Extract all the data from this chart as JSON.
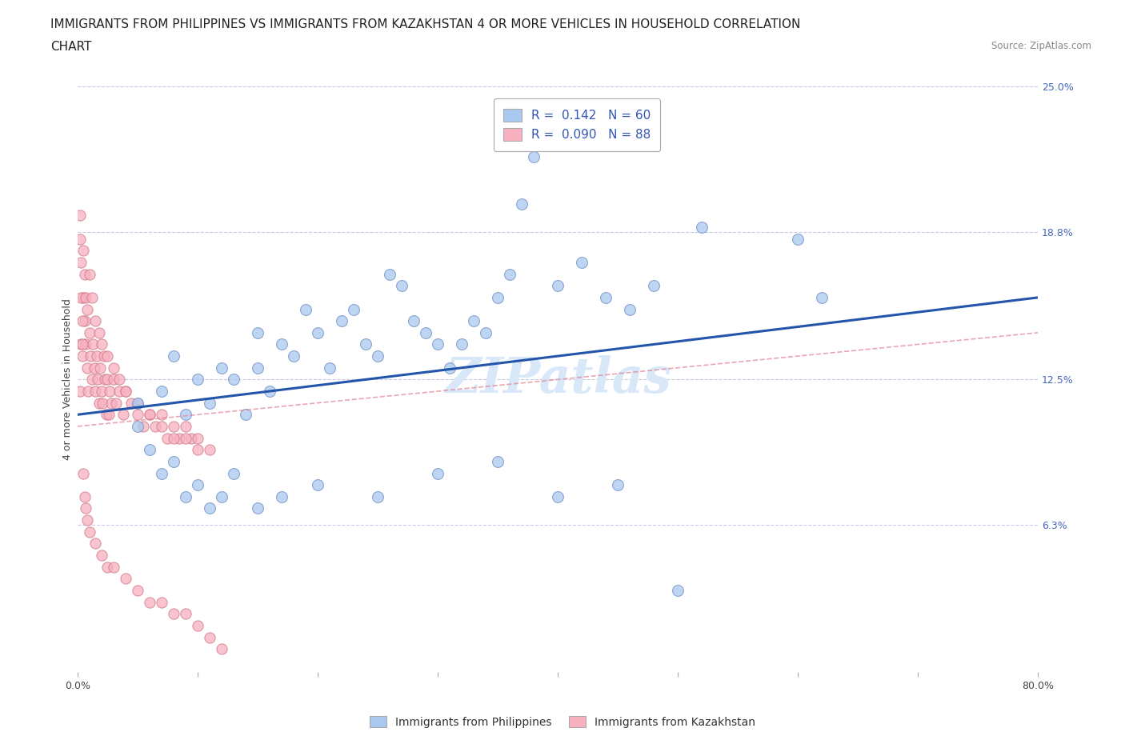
{
  "title_line1": "IMMIGRANTS FROM PHILIPPINES VS IMMIGRANTS FROM KAZAKHSTAN 4 OR MORE VEHICLES IN HOUSEHOLD CORRELATION",
  "title_line2": "CHART",
  "source": "Source: ZipAtlas.com",
  "ylabel": "4 or more Vehicles in Household",
  "xlim": [
    0,
    80
  ],
  "ylim": [
    0,
    25
  ],
  "yticks_right": [
    0,
    6.3,
    12.5,
    18.8,
    25.0
  ],
  "ytick_labels_right": [
    "",
    "6.3%",
    "12.5%",
    "18.8%",
    "25.0%"
  ],
  "grid_color": "#c8c8e8",
  "background_color": "#ffffff",
  "blue_color": "#a8c8f0",
  "blue_edge_color": "#7090c0",
  "pink_color": "#f8b0c0",
  "pink_edge_color": "#d07888",
  "blue_line_color": "#2255aa",
  "pink_line_color": "#e08090",
  "R_blue": 0.142,
  "N_blue": 60,
  "R_pink": 0.09,
  "N_pink": 88,
  "legend_label_blue": "Immigrants from Philippines",
  "legend_label_pink": "Immigrants from Kazakhstan",
  "blue_scatter_x": [
    5,
    7,
    8,
    9,
    10,
    11,
    12,
    13,
    14,
    15,
    15,
    16,
    17,
    18,
    19,
    20,
    21,
    22,
    23,
    24,
    25,
    26,
    27,
    28,
    29,
    30,
    31,
    32,
    33,
    34,
    35,
    36,
    37,
    38,
    40,
    42,
    44,
    46,
    48,
    52,
    60,
    62,
    5,
    6,
    7,
    8,
    9,
    10,
    11,
    12,
    13,
    15,
    17,
    20,
    25,
    30,
    35,
    40,
    45,
    50
  ],
  "blue_scatter_y": [
    11.5,
    12.0,
    13.5,
    11.0,
    12.5,
    11.5,
    13.0,
    12.5,
    11.0,
    14.5,
    13.0,
    12.0,
    14.0,
    13.5,
    15.5,
    14.5,
    13.0,
    15.0,
    15.5,
    14.0,
    13.5,
    17.0,
    16.5,
    15.0,
    14.5,
    14.0,
    13.0,
    14.0,
    15.0,
    14.5,
    16.0,
    17.0,
    20.0,
    22.0,
    16.5,
    17.5,
    16.0,
    15.5,
    16.5,
    19.0,
    18.5,
    16.0,
    10.5,
    9.5,
    8.5,
    9.0,
    7.5,
    8.0,
    7.0,
    7.5,
    8.5,
    7.0,
    7.5,
    8.0,
    7.5,
    8.5,
    9.0,
    7.5,
    8.0,
    3.5
  ],
  "pink_scatter_x": [
    0.2,
    0.3,
    0.4,
    0.5,
    0.6,
    0.7,
    0.8,
    0.9,
    1.0,
    1.1,
    1.2,
    1.3,
    1.4,
    1.5,
    1.6,
    1.7,
    1.8,
    1.9,
    2.0,
    2.1,
    2.2,
    2.3,
    2.4,
    2.5,
    2.6,
    2.7,
    2.8,
    3.0,
    3.2,
    3.5,
    3.8,
    4.0,
    4.5,
    5.0,
    5.5,
    6.0,
    6.5,
    7.0,
    7.5,
    8.0,
    8.5,
    9.0,
    9.5,
    10.0,
    0.2,
    0.2,
    0.3,
    0.3,
    0.4,
    0.4,
    0.5,
    0.6,
    0.7,
    0.8,
    1.0,
    1.2,
    1.5,
    1.8,
    2.0,
    2.5,
    3.0,
    3.5,
    4.0,
    5.0,
    6.0,
    7.0,
    8.0,
    9.0,
    10.0,
    11.0,
    0.5,
    0.6,
    0.7,
    0.8,
    1.0,
    1.5,
    2.0,
    2.5,
    3.0,
    4.0,
    5.0,
    6.0,
    7.0,
    8.0,
    9.0,
    10.0,
    11.0,
    12.0
  ],
  "pink_scatter_y": [
    12.0,
    14.0,
    13.5,
    16.0,
    15.0,
    14.0,
    13.0,
    12.0,
    14.5,
    13.5,
    12.5,
    14.0,
    13.0,
    12.0,
    13.5,
    12.5,
    11.5,
    13.0,
    12.0,
    11.5,
    13.5,
    12.5,
    11.0,
    12.5,
    11.0,
    12.0,
    11.5,
    12.5,
    11.5,
    12.0,
    11.0,
    12.0,
    11.5,
    11.0,
    10.5,
    11.0,
    10.5,
    11.0,
    10.0,
    10.5,
    10.0,
    10.5,
    10.0,
    10.0,
    19.5,
    18.5,
    17.5,
    16.0,
    15.0,
    14.0,
    18.0,
    17.0,
    16.0,
    15.5,
    17.0,
    16.0,
    15.0,
    14.5,
    14.0,
    13.5,
    13.0,
    12.5,
    12.0,
    11.5,
    11.0,
    10.5,
    10.0,
    10.0,
    9.5,
    9.5,
    8.5,
    7.5,
    7.0,
    6.5,
    6.0,
    5.5,
    5.0,
    4.5,
    4.5,
    4.0,
    3.5,
    3.0,
    3.0,
    2.5,
    2.5,
    2.0,
    1.5,
    1.0
  ],
  "blue_trend_x": [
    0,
    80
  ],
  "blue_trend_y": [
    11.0,
    16.0
  ],
  "pink_trend_x": [
    0,
    80
  ],
  "pink_trend_y": [
    10.5,
    14.5
  ],
  "watermark": "ZIPatlas",
  "watermark_color": "#d8e8f8",
  "title_fontsize": 11,
  "axis_label_fontsize": 9,
  "tick_fontsize": 9,
  "legend_fontsize": 11
}
